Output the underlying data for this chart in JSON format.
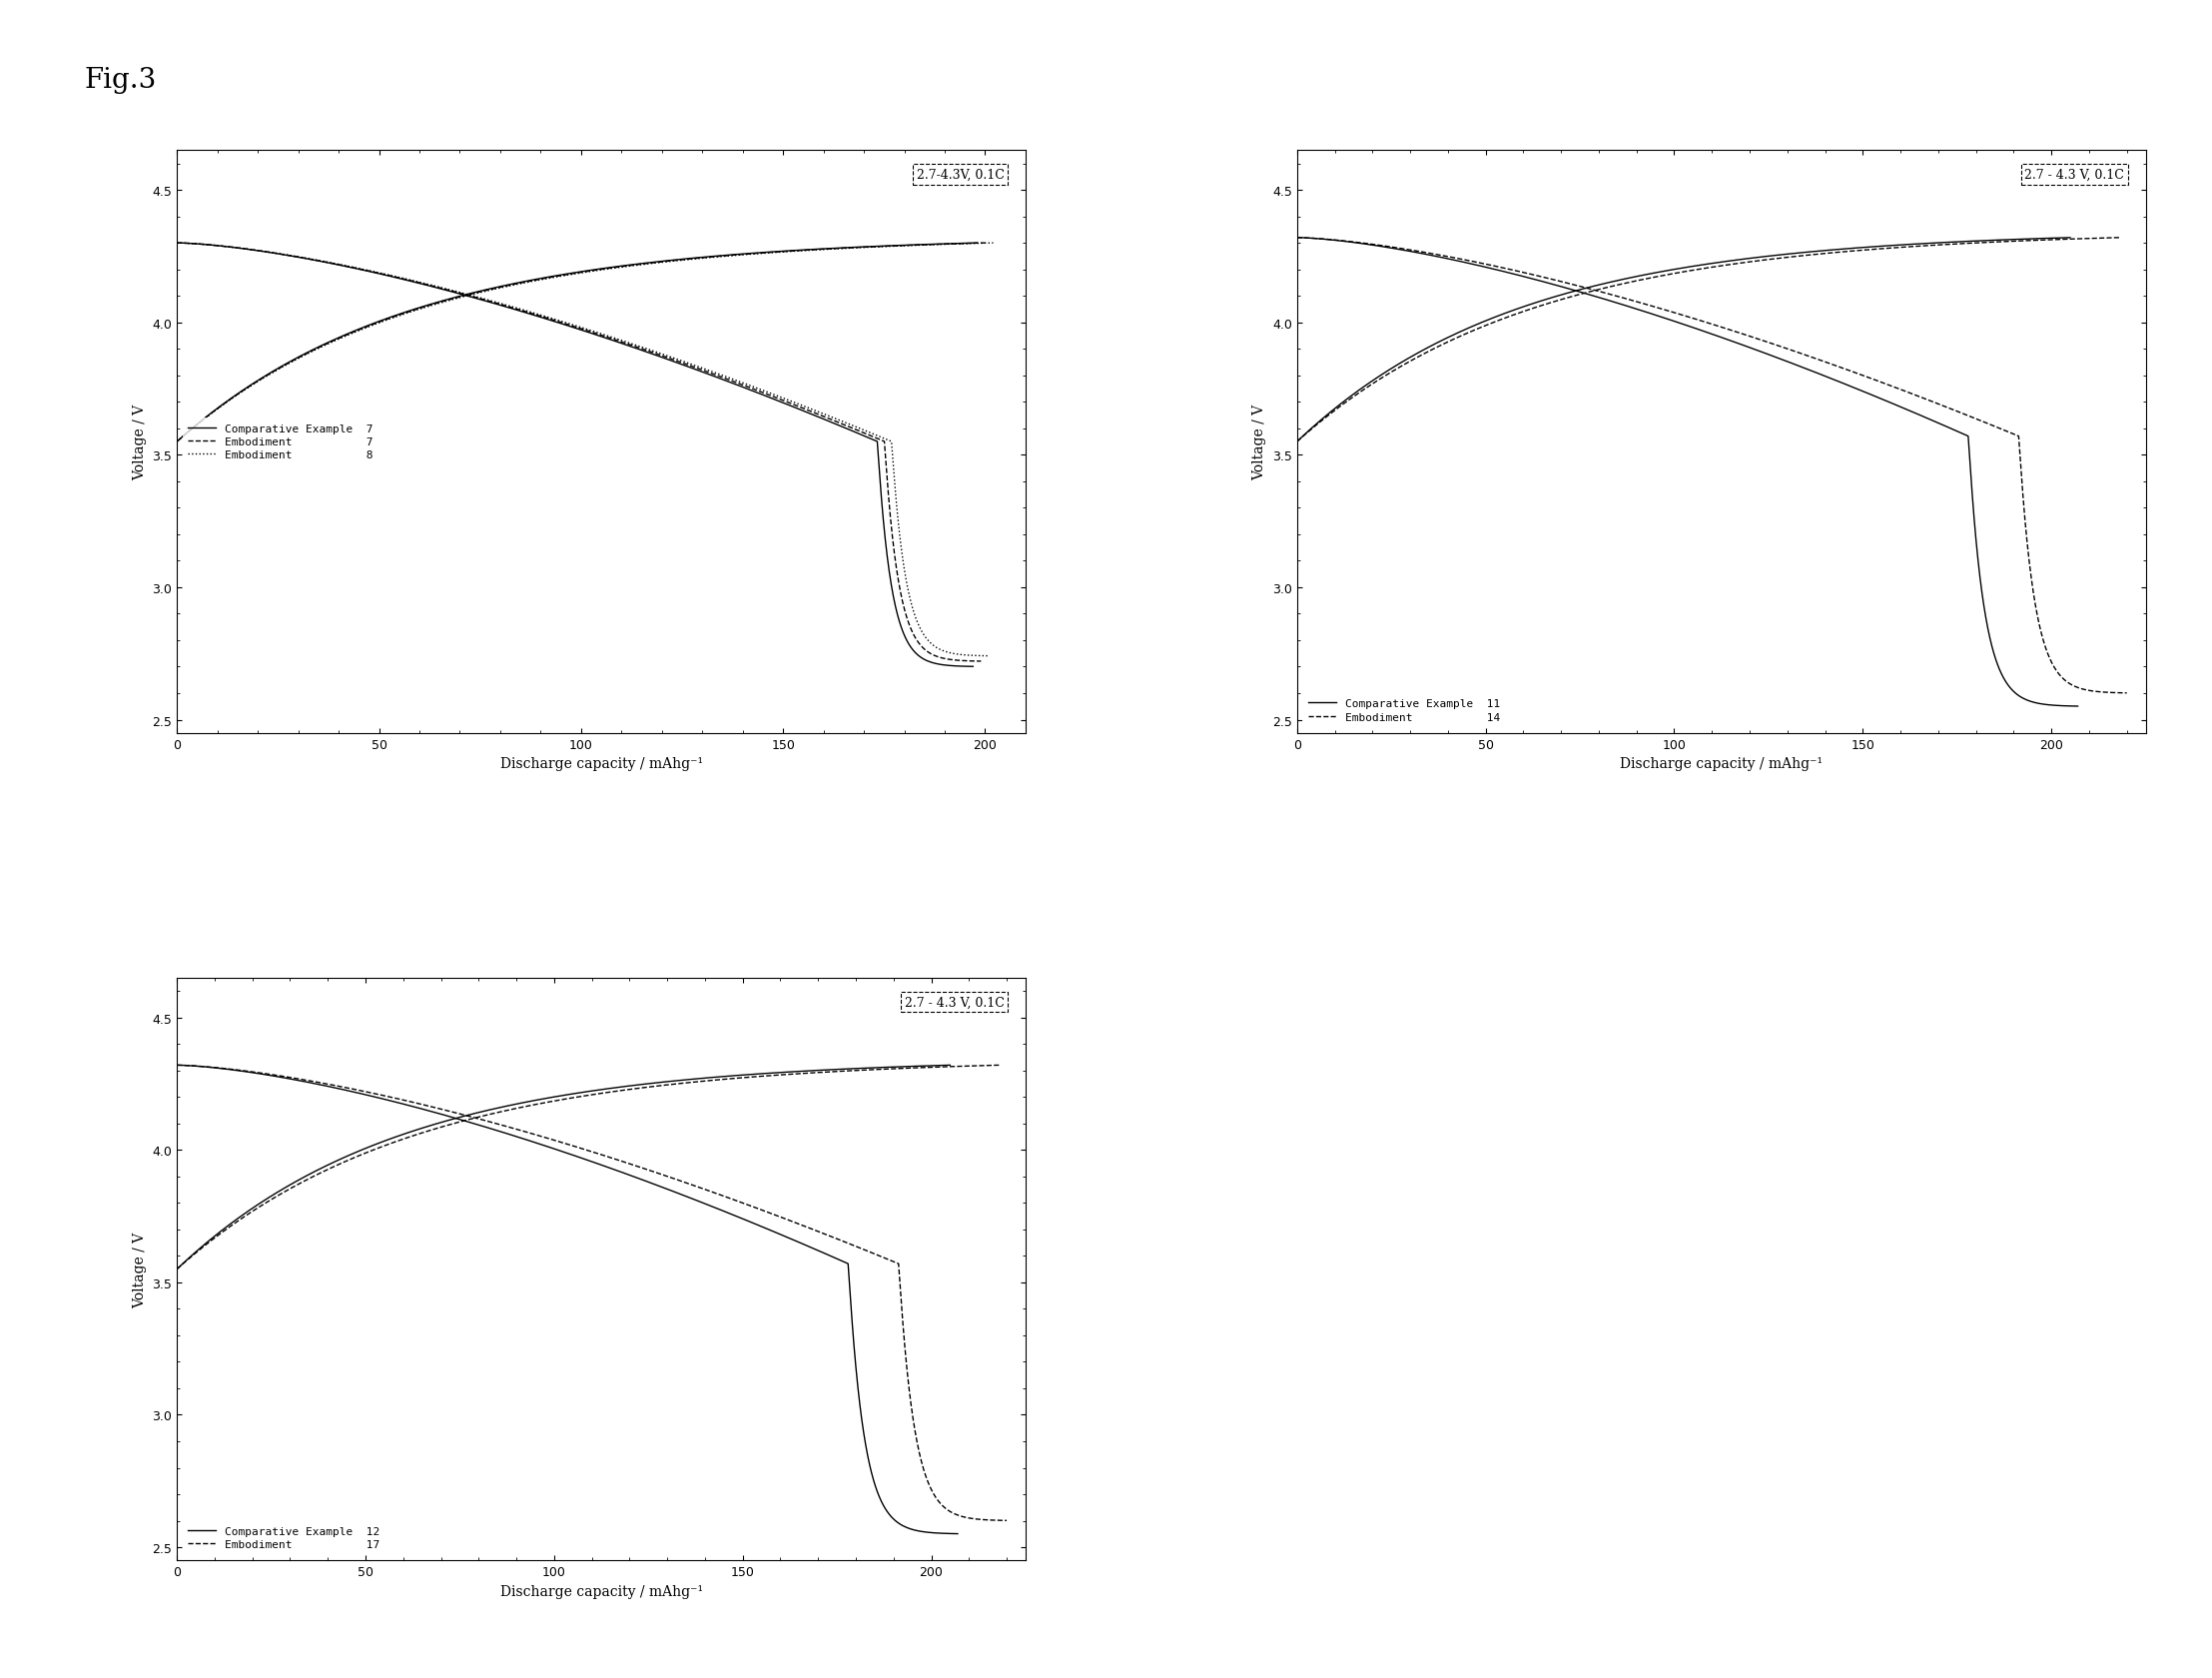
{
  "fig_label": "Fig.3",
  "fig_label_fontsize": 20,
  "background_color": "#ffffff",
  "plots": [
    {
      "title": "2.7-4.3V, 0.1C",
      "xlabel": "Discharge capacity / mAhg⁻¹",
      "ylabel": "Voltage / V",
      "xlim": [
        0,
        210
      ],
      "ylim": [
        2.45,
        4.65
      ],
      "xticks": [
        0,
        50,
        100,
        150,
        200
      ],
      "yticks": [
        2.5,
        3.0,
        3.5,
        4.0,
        4.5
      ],
      "legend_loc": "center left",
      "legend": [
        {
          "label": "Comparative Example  7",
          "linestyle": "-"
        },
        {
          "label": "Embodiment           7",
          "linestyle": "--"
        },
        {
          "label": "Embodiment           8",
          "linestyle": ":"
        }
      ],
      "n_curves": 3
    },
    {
      "title": "2.7 - 4.3 V, 0.1C",
      "xlabel": "Discharge capacity / mAhg⁻¹",
      "ylabel": "Voltage / V",
      "xlim": [
        0,
        225
      ],
      "ylim": [
        2.45,
        4.65
      ],
      "xticks": [
        0,
        50,
        100,
        150,
        200
      ],
      "yticks": [
        2.5,
        3.0,
        3.5,
        4.0,
        4.5
      ],
      "legend_loc": "lower left",
      "legend": [
        {
          "label": "Comparative Example  11",
          "linestyle": "-"
        },
        {
          "label": "Embodiment           14",
          "linestyle": "--"
        }
      ],
      "n_curves": 2
    },
    {
      "title": "2.7 - 4.3 V, 0.1C",
      "xlabel": "Discharge capacity / mAhg⁻¹",
      "ylabel": "Voltage / V",
      "xlim": [
        0,
        225
      ],
      "ylim": [
        2.45,
        4.65
      ],
      "xticks": [
        0,
        50,
        100,
        150,
        200
      ],
      "yticks": [
        2.5,
        3.0,
        3.5,
        4.0,
        4.5
      ],
      "legend_loc": "lower left",
      "legend": [
        {
          "label": "Comparative Example  12",
          "linestyle": "-"
        },
        {
          "label": "Embodiment           17",
          "linestyle": "--"
        }
      ],
      "n_curves": 2
    }
  ]
}
